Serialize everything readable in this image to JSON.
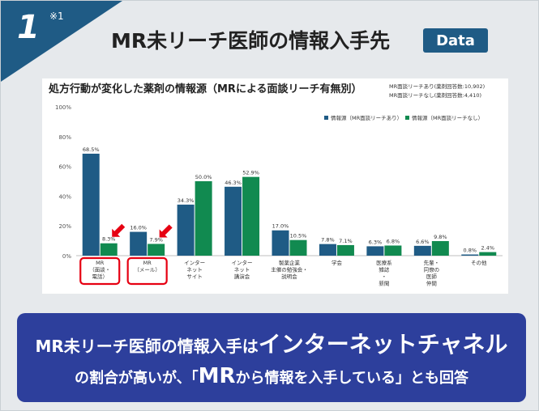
{
  "header": {
    "number": "1",
    "note": "※1",
    "title": "MR未リーチ医師の情報入手先",
    "badge": "Data"
  },
  "colors": {
    "series_with": "#1f5b85",
    "series_without": "#118a50",
    "highlight": "#e60012",
    "corner": "#1f5b85",
    "banner": "#2d3f9c"
  },
  "chart_data": {
    "type": "bar",
    "title": "処方行動が変化した薬剤の情報源（MRによる面談リーチ有無別）",
    "sample_notes": [
      "MR面談リーチあり(薬剤回答数:10,902)",
      "MR面談リーチなし(薬剤回答数:4,410)"
    ],
    "legend_position": "top-right",
    "ylim": [
      0,
      100
    ],
    "yticks": [
      "0%",
      "20%",
      "40%",
      "60%",
      "80%",
      "100%"
    ],
    "ytick_values": [
      0,
      20,
      40,
      60,
      80,
      100
    ],
    "categories": [
      [
        "MR",
        "（面談・",
        "電話）"
      ],
      [
        "MR",
        "（メール）"
      ],
      [
        "インター",
        "ネット",
        "サイト"
      ],
      [
        "インター",
        "ネット",
        "講演会"
      ],
      [
        "製薬企業",
        "主催の勉強会・",
        "説明会"
      ],
      [
        "学会"
      ],
      [
        "医療系",
        "雑誌",
        "・",
        "新聞"
      ],
      [
        "先輩・",
        "同僚の",
        "医師",
        "仲間"
      ],
      [
        "その他"
      ]
    ],
    "series": [
      {
        "name": "情報源（MR面談リーチあり）",
        "values": [
          68.5,
          16.0,
          34.3,
          46.3,
          17.0,
          7.8,
          6.3,
          6.6,
          0.8
        ],
        "labels": [
          "68.5%",
          "16.0%",
          "34.3%",
          "46.3%",
          "17.0%",
          "7.8%",
          "6.3%",
          "6.6%",
          "0.8%"
        ]
      },
      {
        "name": "情報源（MR面談リーチなし）",
        "values": [
          8.3,
          7.9,
          50.0,
          52.9,
          10.5,
          7.1,
          6.8,
          9.8,
          2.4
        ],
        "labels": [
          "8.3%",
          "7.9%",
          "50.0%",
          "52.9%",
          "10.5%",
          "7.1%",
          "6.8%",
          "9.8%",
          "2.4%"
        ]
      }
    ],
    "highlighted_categories": [
      0,
      1
    ]
  },
  "banner": {
    "line1_prefix": "MR未リーチ医師の情報入手は",
    "line1_emph": "インターネットチャネル",
    "line2_prefix": "の割合が高いが、「",
    "line2_emph": "MR",
    "line2_suffix": "から情報を入手している」とも回答"
  }
}
